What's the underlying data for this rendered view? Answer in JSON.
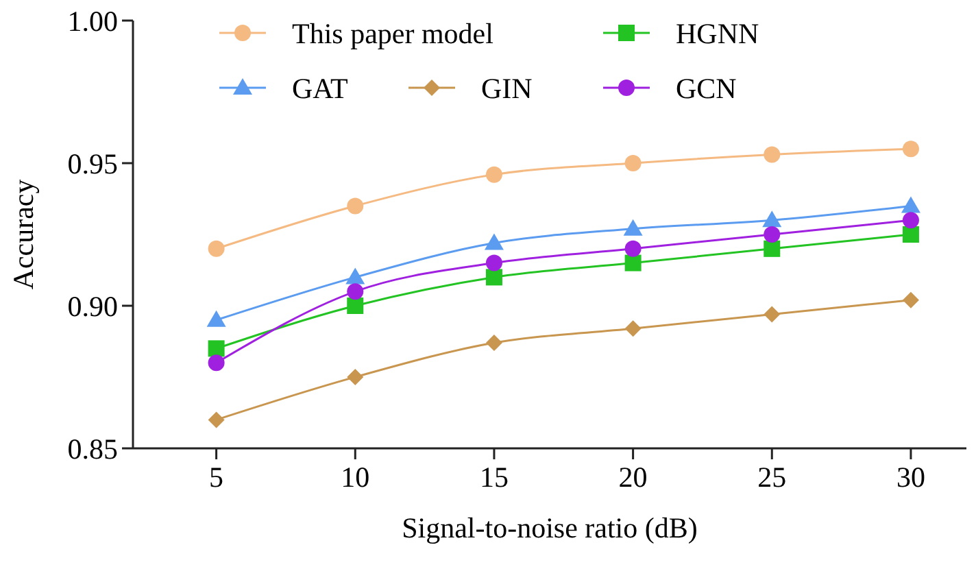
{
  "chart_data": {
    "type": "line",
    "xlabel": "Signal-to-noise ratio (dB)",
    "ylabel": "Accuracy",
    "x": [
      5,
      10,
      15,
      20,
      25,
      30
    ],
    "xlim": [
      2,
      32
    ],
    "xticks": [
      5,
      10,
      15,
      20,
      25,
      30
    ],
    "ylim": [
      0.85,
      1.0
    ],
    "yticks": [
      {
        "value": 0.85,
        "label": "0.85"
      },
      {
        "value": 0.9,
        "label": "0.90"
      },
      {
        "value": 0.95,
        "label": "0.95"
      },
      {
        "value": 1.0,
        "label": "1.00"
      }
    ],
    "grid": false,
    "legend": "top",
    "series": [
      {
        "name": "This paper model",
        "color": "#f5b982",
        "marker": "circle",
        "values": [
          0.92,
          0.935,
          0.946,
          0.95,
          0.953,
          0.955
        ]
      },
      {
        "name": "HGNN",
        "color": "#22c322",
        "marker": "square",
        "values": [
          0.885,
          0.9,
          0.91,
          0.915,
          0.92,
          0.925
        ]
      },
      {
        "name": "GAT",
        "color": "#5b9bf0",
        "marker": "triangle",
        "values": [
          0.895,
          0.91,
          0.922,
          0.927,
          0.93,
          0.935
        ]
      },
      {
        "name": "GIN",
        "color": "#c8964f",
        "marker": "diamond",
        "values": [
          0.86,
          0.875,
          0.887,
          0.892,
          0.897,
          0.902
        ]
      },
      {
        "name": "GCN",
        "color": "#a020e0",
        "marker": "circle",
        "values": [
          0.88,
          0.905,
          0.915,
          0.92,
          0.925,
          0.93
        ]
      }
    ]
  }
}
